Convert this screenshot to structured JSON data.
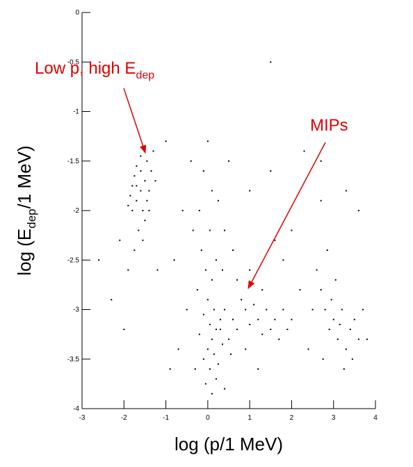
{
  "chart_data": {
    "type": "scatter",
    "x_label": {
      "text": "log (p/1 MeV)"
    },
    "y_label": {
      "before": "log (E",
      "sub": "dep",
      "after": "/1 MeV)"
    },
    "annotations": [
      {
        "text": "Low p, high E",
        "sub": "dep"
      },
      {
        "text": "MIPs"
      }
    ],
    "color": "#000000",
    "annotation_color": "#e00000",
    "xlim": [
      -3,
      4
    ],
    "ylim": [
      -4,
      0
    ],
    "xticks": [
      -3,
      -2,
      -1,
      0,
      1,
      2,
      3,
      4
    ],
    "yticks": [
      -4,
      -3.5,
      -3,
      -2.5,
      -2,
      -1.5,
      -1,
      -0.5,
      0
    ],
    "x": [
      -1.6,
      -1.5,
      -1.7,
      -1.55,
      -1.45,
      -1.65,
      -1.4,
      -1.75,
      -1.5,
      -1.35,
      -1.6,
      -1.45,
      -1.8,
      -1.3,
      -1.7,
      -1.55,
      -1.9,
      -1.4,
      -1.25,
      -1.6,
      -1.9,
      -1.85,
      -1.8,
      -1.75,
      -1.7,
      -2.1,
      -2.3,
      -2.0,
      -1.2,
      -2.6,
      0.0,
      -0.1,
      0.1,
      -0.2,
      0.05,
      -0.15,
      0.2,
      -0.05,
      0.1,
      -0.25,
      0.0,
      0.15,
      -0.1,
      0.3,
      0.05,
      0.2,
      -0.2,
      0.1,
      0.35,
      0.0,
      0.15,
      -0.1,
      0.25,
      0.05,
      0.2,
      -0.05,
      0.1,
      0.3,
      0.4,
      0.5,
      0.6,
      0.7,
      0.8,
      0.9,
      1.0,
      1.1,
      1.2,
      1.3,
      1.4,
      1.5,
      1.6,
      1.7,
      1.8,
      1.9,
      2.0,
      0.7,
      1.0,
      1.3,
      0.55,
      0.9,
      2.6,
      2.7,
      2.8,
      2.9,
      3.0,
      3.1,
      3.2,
      3.3,
      3.4,
      3.5,
      3.6,
      2.75,
      3.05,
      3.25,
      2.5,
      2.85,
      3.45,
      3.7,
      2.95,
      3.15,
      -0.6,
      -0.8,
      -0.5,
      -0.7,
      -0.4,
      0.5,
      1.0,
      1.5,
      2.0,
      2.3,
      2.7,
      3.3,
      3.6,
      1.8,
      2.2,
      0.4,
      0.6,
      -0.3,
      0.4,
      1.2,
      1.5,
      2.7,
      -1.0,
      -0.9,
      0.25,
      0.35,
      -0.35,
      1.6,
      2.4,
      3.8
    ],
    "y": [
      -1.6,
      -1.7,
      -1.9,
      -2.0,
      -1.5,
      -2.2,
      -1.8,
      -2.4,
      -2.1,
      -1.6,
      -1.8,
      -1.9,
      -2.0,
      -1.4,
      -1.75,
      -2.3,
      -2.6,
      -2.0,
      -1.7,
      -1.45,
      -1.95,
      -1.85,
      -1.75,
      -1.65,
      -1.55,
      -2.3,
      -2.9,
      -3.2,
      -2.6,
      -2.5,
      -1.3,
      -1.6,
      -1.8,
      -2.0,
      -2.2,
      -2.4,
      -2.5,
      -2.6,
      -2.7,
      -2.8,
      -2.9,
      -3.0,
      -3.05,
      -3.1,
      -3.15,
      -3.2,
      -3.25,
      -3.3,
      -3.35,
      -3.4,
      -3.45,
      -3.5,
      -3.55,
      -3.6,
      -3.7,
      -3.75,
      -3.85,
      -3.2,
      -3.0,
      -3.3,
      -3.1,
      -3.2,
      -2.9,
      -3.0,
      -3.15,
      -2.95,
      -3.1,
      -3.25,
      -3.0,
      -3.2,
      -3.1,
      -3.3,
      -3.0,
      -3.2,
      -3.1,
      -2.7,
      -2.6,
      -2.8,
      -3.45,
      -3.4,
      -2.6,
      -2.8,
      -3.0,
      -3.2,
      -3.1,
      -3.3,
      -3.0,
      -3.4,
      -3.2,
      -3.1,
      -3.3,
      -3.5,
      -2.7,
      -3.6,
      -3.0,
      -2.4,
      -3.5,
      -3.0,
      -2.9,
      -3.15,
      -2.0,
      -2.5,
      -3.0,
      -3.4,
      -1.5,
      -1.5,
      -1.8,
      -1.6,
      -2.2,
      -1.4,
      -1.5,
      -1.8,
      -2.0,
      -2.5,
      -2.8,
      -2.2,
      -2.4,
      -3.6,
      -3.8,
      -3.6,
      -0.5,
      -1.9,
      -1.3,
      -3.6,
      -1.9,
      -2.6,
      -2.2,
      -2.3,
      -3.4,
      -3.3
    ]
  }
}
